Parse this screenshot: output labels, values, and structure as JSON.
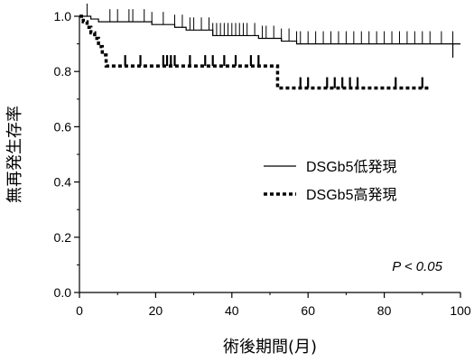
{
  "chart_data": {
    "type": "line",
    "xlabel": "術後期間(月)",
    "ylabel": "無再発生存率",
    "xlim": [
      0,
      100
    ],
    "ylim": [
      0,
      1.0
    ],
    "x_ticks": [
      "0",
      "20",
      "40",
      "60",
      "80",
      "100"
    ],
    "y_ticks": [
      "0.0",
      "0.2",
      "0.4",
      "0.6",
      "0.8",
      "1.0"
    ],
    "legend_position": "center-right",
    "annotation": "P < 0.05",
    "series": [
      {
        "name": "DSGb5低発現",
        "style": "solid",
        "steps": [
          [
            0,
            1.0
          ],
          [
            3,
            0.99
          ],
          [
            5,
            0.98
          ],
          [
            19,
            0.97
          ],
          [
            25,
            0.96
          ],
          [
            28,
            0.95
          ],
          [
            35,
            0.93
          ],
          [
            47,
            0.92
          ],
          [
            53,
            0.91
          ],
          [
            57,
            0.9
          ],
          [
            100,
            0.9
          ]
        ],
        "censor_x": [
          2,
          8,
          10,
          13,
          14,
          17,
          19,
          22,
          25,
          27,
          29,
          30,
          32,
          34,
          35,
          36,
          37,
          38,
          39,
          40,
          41,
          42,
          43,
          44,
          46,
          48,
          49,
          51,
          53,
          55,
          57,
          58,
          60,
          62,
          64,
          66,
          68,
          70,
          72,
          74,
          76,
          78,
          80,
          82,
          84,
          86,
          88,
          90,
          92,
          95,
          98
        ],
        "end_drop": [
          98,
          0.85
        ]
      },
      {
        "name": "DSGb5高発現",
        "style": "dashed",
        "steps": [
          [
            0,
            1.0
          ],
          [
            1,
            0.98
          ],
          [
            2,
            0.96
          ],
          [
            3,
            0.94
          ],
          [
            4,
            0.92
          ],
          [
            5,
            0.89
          ],
          [
            6,
            0.86
          ],
          [
            7,
            0.82
          ],
          [
            52,
            0.74
          ],
          [
            92,
            0.74
          ]
        ],
        "censor_x": [
          12,
          16,
          22,
          23,
          24,
          25,
          29,
          33,
          35,
          38,
          41,
          45,
          47,
          58,
          60,
          65,
          67,
          69,
          71,
          73,
          83,
          90
        ]
      }
    ]
  }
}
